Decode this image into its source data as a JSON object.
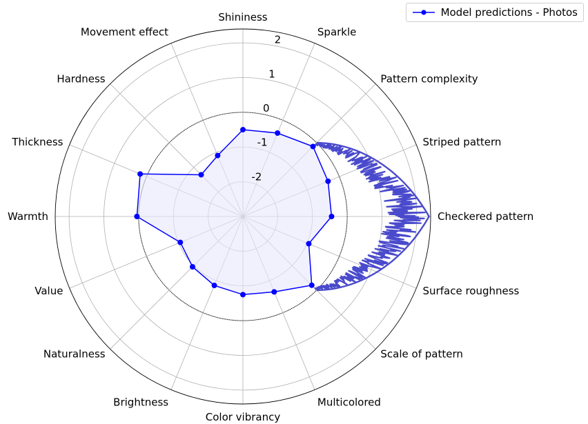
{
  "chart_data": {
    "type": "radar",
    "axes": [
      "Shininess",
      "Sparkle",
      "Pattern complexity",
      "Striped pattern",
      "Checkered pattern",
      "Surface roughness",
      "Scale of pattern",
      "Multicolored",
      "Color vibrancy",
      "Brightness",
      "Naturalness",
      "Value",
      "Warmth",
      "Thickness",
      "Hardness",
      "Movement effect"
    ],
    "rlim": [
      -3,
      2.4
    ],
    "rticks": [
      "-2",
      "-1",
      "0",
      "1",
      "2"
    ],
    "rtick_values": [
      -2,
      -1,
      0,
      1,
      2
    ],
    "zero_reference": 0,
    "grid": true,
    "legend_position": "upper right",
    "series": [
      {
        "name": "Model predictions - Photos",
        "color": "#0000ff",
        "fill": "#e8e8fb",
        "values": [
          -0.5,
          -0.4,
          -0.15,
          -0.35,
          -0.45,
          -0.95,
          -0.2,
          -0.65,
          -0.75,
          -0.85,
          -0.95,
          -1.05,
          0.05,
          0.2,
          -1.3,
          -1.1
        ]
      }
    ],
    "noise_trace_color": "#4a4acc"
  }
}
